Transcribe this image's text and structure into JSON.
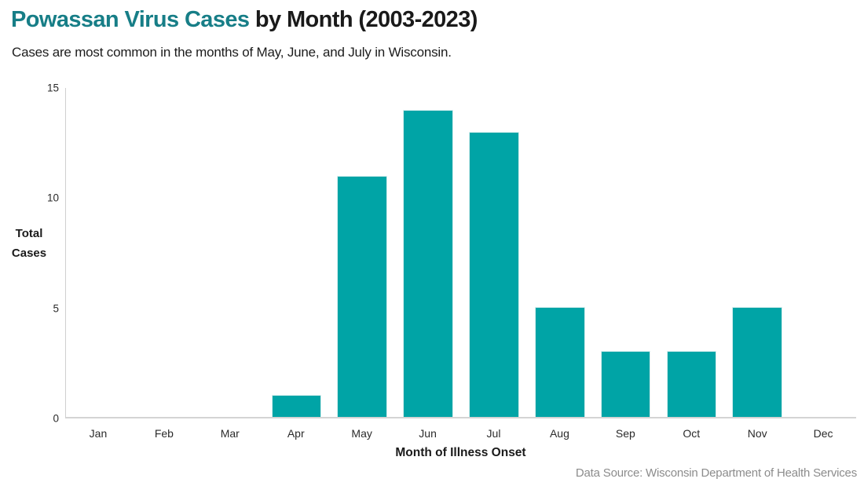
{
  "header": {
    "title_highlight": "Powassan Virus Cases",
    "title_rest": " by Month (2003-2023)",
    "subtitle": "Cases are most common in the months of May, June, and July in Wisconsin."
  },
  "chart_data": {
    "type": "bar",
    "categories": [
      "Jan",
      "Feb",
      "Mar",
      "Apr",
      "May",
      "Jun",
      "Jul",
      "Aug",
      "Sep",
      "Oct",
      "Nov",
      "Dec"
    ],
    "values": [
      0,
      0,
      0,
      1,
      11,
      14,
      13,
      5,
      3,
      3,
      5,
      0
    ],
    "title": "Powassan Virus Cases by Month (2003-2023)",
    "xlabel": "Month of Illness Onset",
    "ylabel": "Total Cases",
    "ylim": [
      0,
      15
    ],
    "yticks": [
      0,
      5,
      10,
      15
    ],
    "grid": false,
    "legend_position": "none"
  },
  "footer": {
    "source": "Data Source: Wisconsin Department of Health Services"
  },
  "colors": {
    "title_accent": "#177E87",
    "bar": "#00A4A6",
    "footer_text": "#8C8C8C"
  }
}
